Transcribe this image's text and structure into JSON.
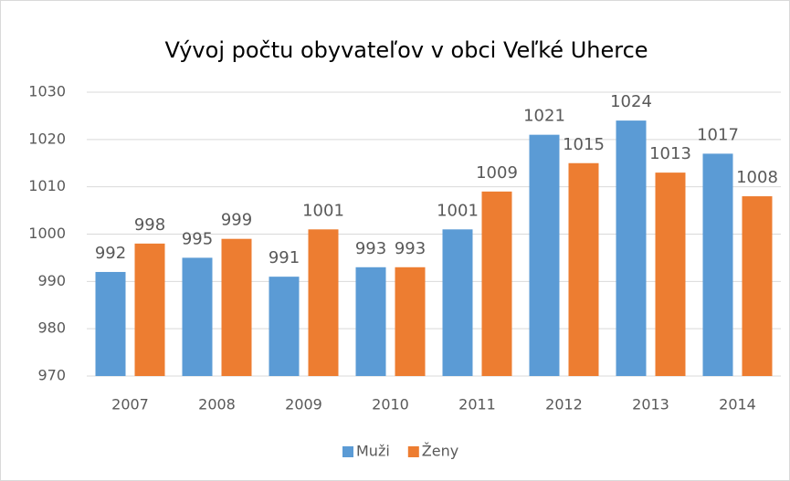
{
  "chart_data": {
    "type": "bar",
    "title": "Vývoj počtu obyvateľov v obci Veľké Uherce",
    "categories": [
      "2007",
      "2008",
      "2009",
      "2010",
      "2011",
      "2012",
      "2013",
      "2014"
    ],
    "series": [
      {
        "name": "Muži",
        "color": "#5b9bd5",
        "values": [
          992,
          995,
          991,
          993,
          1001,
          1021,
          1024,
          1017
        ]
      },
      {
        "name": "Ženy",
        "color": "#ed7d31",
        "values": [
          998,
          999,
          1001,
          993,
          1009,
          1015,
          1013,
          1008
        ]
      }
    ],
    "ylim": [
      970,
      1030
    ],
    "yticks": [
      970,
      980,
      990,
      1000,
      1010,
      1020,
      1030
    ],
    "grid": true,
    "legend": "bottom"
  }
}
